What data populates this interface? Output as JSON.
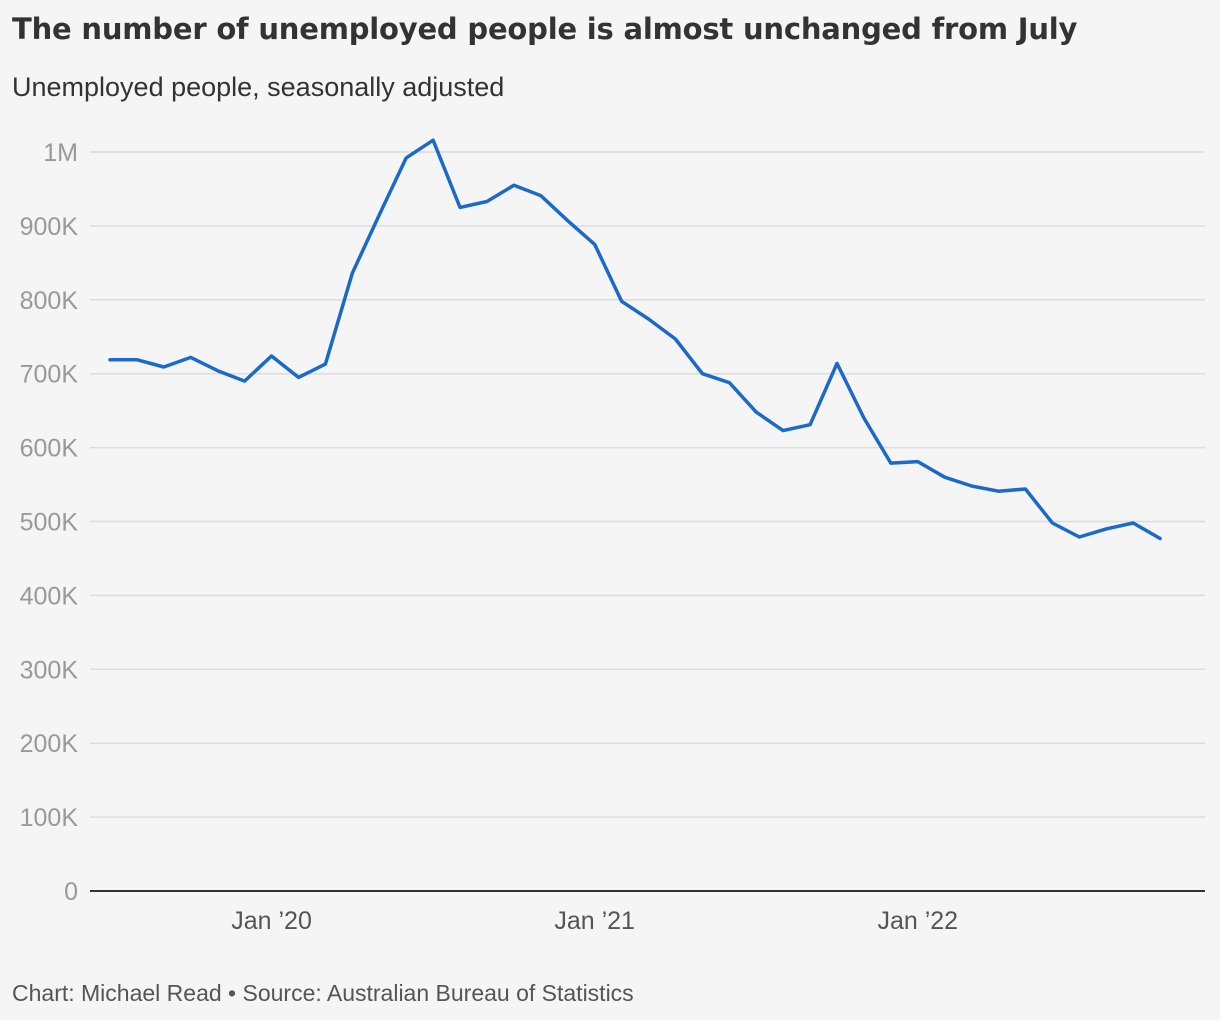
{
  "header": {
    "title": "The number of unemployed people is almost unchanged from July",
    "subtitle": "Unemployed people, seasonally adjusted"
  },
  "footer": {
    "source": "Chart: Michael Read • Source: Australian Bureau of Statistics"
  },
  "chart_data": {
    "type": "line",
    "title": "The number of unemployed people is almost unchanged from July",
    "subtitle": "Unemployed people, seasonally adjusted",
    "xlabel": "",
    "ylabel": "",
    "ylim": [
      0,
      1000000
    ],
    "yticks": [
      0,
      100000,
      200000,
      300000,
      400000,
      500000,
      600000,
      700000,
      800000,
      900000,
      1000000
    ],
    "ytick_labels": [
      "0",
      "100K",
      "200K",
      "300K",
      "400K",
      "500K",
      "600K",
      "700K",
      "800K",
      "900K",
      "1M"
    ],
    "xticks": [
      "2020-01",
      "2021-01",
      "2022-01"
    ],
    "xtick_labels": [
      "Jan ’20",
      "Jan ’21",
      "Jan ’22"
    ],
    "grid": true,
    "line_color": "#1b6ac9",
    "series": [
      {
        "x": [
          "2019-07",
          "2019-08",
          "2019-09",
          "2019-10",
          "2019-11",
          "2019-12",
          "2020-01",
          "2020-02",
          "2020-03",
          "2020-04",
          "2020-05",
          "2020-06",
          "2020-07",
          "2020-08",
          "2020-09",
          "2020-10",
          "2020-11",
          "2020-12",
          "2021-01",
          "2021-02",
          "2021-03",
          "2021-04",
          "2021-05",
          "2021-06",
          "2021-07",
          "2021-08",
          "2021-09",
          "2021-10",
          "2021-11",
          "2021-12",
          "2022-01",
          "2022-02",
          "2022-03",
          "2022-04",
          "2022-05",
          "2022-06",
          "2022-07",
          "2022-08",
          "2022-09",
          "2022-10",
          "2022-11"
        ],
        "values": [
          719000,
          719000,
          709000,
          722000,
          704000,
          690000,
          724000,
          695000,
          713000,
          836000,
          915000,
          992000,
          1016000,
          925000,
          933000,
          955000,
          941000,
          907000,
          875000,
          798000,
          774000,
          747000,
          700000,
          688000,
          648000,
          623000,
          631000,
          714000,
          640000,
          579000,
          581000,
          560000,
          548000,
          541000,
          544000,
          498000,
          479000,
          490000,
          498000,
          477000,
          null
        ]
      }
    ]
  }
}
